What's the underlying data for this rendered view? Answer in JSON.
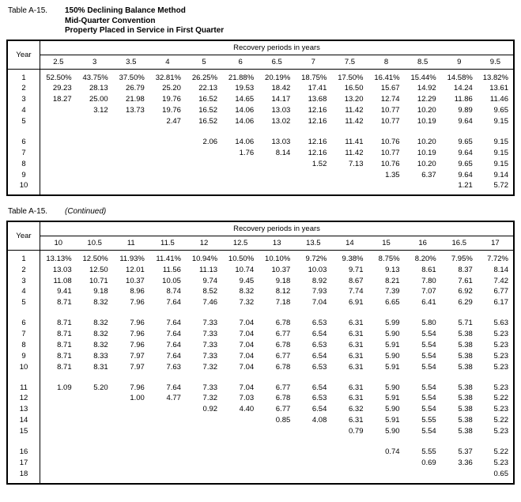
{
  "tables": [
    {
      "label": "Table A-15.",
      "title_lines": [
        "150% Declining Balance Method",
        "Mid-Quarter Convention",
        "Property Placed in Service in First Quarter"
      ],
      "year_header": "Year",
      "span_header": "Recovery periods in years",
      "periods": [
        "2.5",
        "3",
        "3.5",
        "4",
        "5",
        "6",
        "6.5",
        "7",
        "7.5",
        "8",
        "8.5",
        "9",
        "9.5"
      ],
      "sections": [
        {
          "years": [
            "1",
            "2",
            "3",
            "4",
            "5"
          ],
          "rows": [
            [
              "52.50%",
              "43.75%",
              "37.50%",
              "32.81%",
              "26.25%",
              "21.88%",
              "20.19%",
              "18.75%",
              "17.50%",
              "16.41%",
              "15.44%",
              "14.58%",
              "13.82%"
            ],
            [
              "29.23",
              "28.13",
              "26.79",
              "25.20",
              "22.13",
              "19.53",
              "18.42",
              "17.41",
              "16.50",
              "15.67",
              "14.92",
              "14.24",
              "13.61"
            ],
            [
              "18.27",
              "25.00",
              "21.98",
              "19.76",
              "16.52",
              "14.65",
              "14.17",
              "13.68",
              "13.20",
              "12.74",
              "12.29",
              "11.86",
              "11.46"
            ],
            [
              "",
              "3.12",
              "13.73",
              "19.76",
              "16.52",
              "14.06",
              "13.03",
              "12.16",
              "11.42",
              "10.77",
              "10.20",
              "9.89",
              "9.65"
            ],
            [
              "",
              "",
              "",
              "2.47",
              "16.52",
              "14.06",
              "13.02",
              "12.16",
              "11.42",
              "10.77",
              "10.19",
              "9.64",
              "9.15"
            ]
          ]
        },
        {
          "years": [
            "6",
            "7",
            "8",
            "9",
            "10"
          ],
          "rows": [
            [
              "",
              "",
              "",
              "",
              "2.06",
              "14.06",
              "13.03",
              "12.16",
              "11.41",
              "10.76",
              "10.20",
              "9.65",
              "9.15"
            ],
            [
              "",
              "",
              "",
              "",
              "",
              "1.76",
              "8.14",
              "12.16",
              "11.42",
              "10.77",
              "10.19",
              "9.64",
              "9.15"
            ],
            [
              "",
              "",
              "",
              "",
              "",
              "",
              "",
              "1.52",
              "7.13",
              "10.76",
              "10.20",
              "9.65",
              "9.15"
            ],
            [
              "",
              "",
              "",
              "",
              "",
              "",
              "",
              "",
              "",
              "1.35",
              "6.37",
              "9.64",
              "9.14"
            ],
            [
              "",
              "",
              "",
              "",
              "",
              "",
              "",
              "",
              "",
              "",
              "",
              "1.21",
              "5.72"
            ]
          ]
        }
      ]
    },
    {
      "label": "Table A-15.",
      "title_lines": [
        "(Continued)"
      ],
      "title_italic": true,
      "year_header": "Year",
      "span_header": "Recovery periods in years",
      "periods": [
        "10",
        "10.5",
        "11",
        "11.5",
        "12",
        "12.5",
        "13",
        "13.5",
        "14",
        "15",
        "16",
        "16.5",
        "17"
      ],
      "sections": [
        {
          "years": [
            "1",
            "2",
            "3",
            "4",
            "5"
          ],
          "rows": [
            [
              "13.13%",
              "12.50%",
              "11.93%",
              "11.41%",
              "10.94%",
              "10.50%",
              "10.10%",
              "9.72%",
              "9.38%",
              "8.75%",
              "8.20%",
              "7.95%",
              "7.72%"
            ],
            [
              "13.03",
              "12.50",
              "12.01",
              "11.56",
              "11.13",
              "10.74",
              "10.37",
              "10.03",
              "9.71",
              "9.13",
              "8.61",
              "8.37",
              "8.14"
            ],
            [
              "11.08",
              "10.71",
              "10.37",
              "10.05",
              "9.74",
              "9.45",
              "9.18",
              "8.92",
              "8.67",
              "8.21",
              "7.80",
              "7.61",
              "7.42"
            ],
            [
              "9.41",
              "9.18",
              "8.96",
              "8.74",
              "8.52",
              "8.32",
              "8.12",
              "7.93",
              "7.74",
              "7.39",
              "7.07",
              "6.92",
              "6.77"
            ],
            [
              "8.71",
              "8.32",
              "7.96",
              "7.64",
              "7.46",
              "7.32",
              "7.18",
              "7.04",
              "6.91",
              "6.65",
              "6.41",
              "6.29",
              "6.17"
            ]
          ]
        },
        {
          "years": [
            "6",
            "7",
            "8",
            "9",
            "10"
          ],
          "rows": [
            [
              "8.71",
              "8.32",
              "7.96",
              "7.64",
              "7.33",
              "7.04",
              "6.78",
              "6.53",
              "6.31",
              "5.99",
              "5.80",
              "5.71",
              "5.63"
            ],
            [
              "8.71",
              "8.32",
              "7.96",
              "7.64",
              "7.33",
              "7.04",
              "6.77",
              "6.54",
              "6.31",
              "5.90",
              "5.54",
              "5.38",
              "5.23"
            ],
            [
              "8.71",
              "8.32",
              "7.96",
              "7.64",
              "7.33",
              "7.04",
              "6.78",
              "6.53",
              "6.31",
              "5.91",
              "5.54",
              "5.38",
              "5.23"
            ],
            [
              "8.71",
              "8.33",
              "7.97",
              "7.64",
              "7.33",
              "7.04",
              "6.77",
              "6.54",
              "6.31",
              "5.90",
              "5.54",
              "5.38",
              "5.23"
            ],
            [
              "8.71",
              "8.31",
              "7.97",
              "7.63",
              "7.32",
              "7.04",
              "6.78",
              "6.53",
              "6.31",
              "5.91",
              "5.54",
              "5.38",
              "5.23"
            ]
          ]
        },
        {
          "years": [
            "11",
            "12",
            "13",
            "14",
            "15"
          ],
          "rows": [
            [
              "1.09",
              "5.20",
              "7.96",
              "7.64",
              "7.33",
              "7.04",
              "6.77",
              "6.54",
              "6.31",
              "5.90",
              "5.54",
              "5.38",
              "5.23"
            ],
            [
              "",
              "",
              "1.00",
              "4.77",
              "7.32",
              "7.03",
              "6.78",
              "6.53",
              "6.31",
              "5.91",
              "5.54",
              "5.38",
              "5.22"
            ],
            [
              "",
              "",
              "",
              "",
              "0.92",
              "4.40",
              "6.77",
              "6.54",
              "6.32",
              "5.90",
              "5.54",
              "5.38",
              "5.23"
            ],
            [
              "",
              "",
              "",
              "",
              "",
              "",
              "0.85",
              "4.08",
              "6.31",
              "5.91",
              "5.55",
              "5.38",
              "5.22"
            ],
            [
              "",
              "",
              "",
              "",
              "",
              "",
              "",
              "",
              "0.79",
              "5.90",
              "5.54",
              "5.38",
              "5.23"
            ]
          ]
        },
        {
          "years": [
            "16",
            "17",
            "18"
          ],
          "rows": [
            [
              "",
              "",
              "",
              "",
              "",
              "",
              "",
              "",
              "",
              "0.74",
              "5.55",
              "5.37",
              "5.22"
            ],
            [
              "",
              "",
              "",
              "",
              "",
              "",
              "",
              "",
              "",
              "",
              "0.69",
              "3.36",
              "5.23"
            ],
            [
              "",
              "",
              "",
              "",
              "",
              "",
              "",
              "",
              "",
              "",
              "",
              "",
              "0.65"
            ]
          ]
        }
      ]
    }
  ]
}
